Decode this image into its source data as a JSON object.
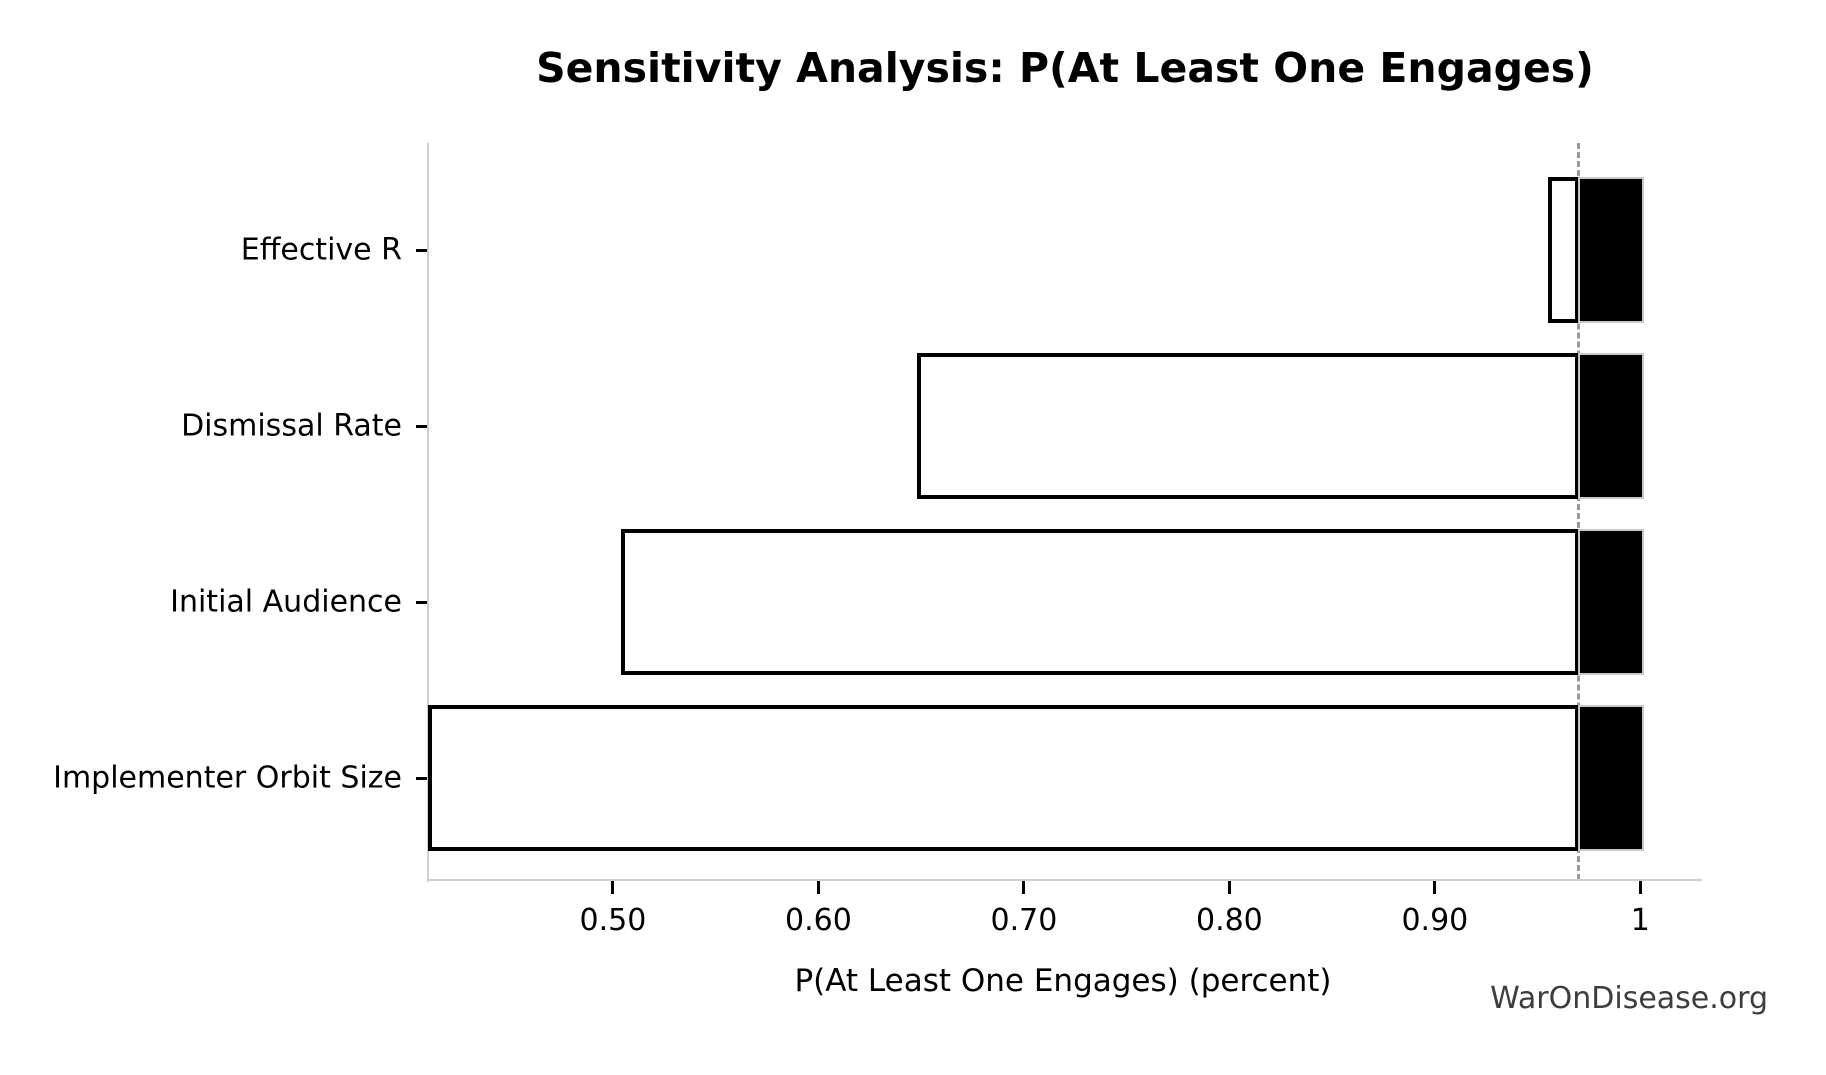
{
  "chart_data": {
    "type": "bar",
    "variant": "tornado-sensitivity",
    "orientation": "horizontal",
    "title": "Sensitivity Analysis: P(At Least One Engages)",
    "xlabel": "P(At Least One Engages) (percent)",
    "watermark": "WarOnDisease.org",
    "base_value": 0.97,
    "categories": [
      "Effective R",
      "Dismissal Rate",
      "Initial Audience",
      "Implementer Orbit Size"
    ],
    "series": [
      {
        "name": "low-end",
        "values": [
          0.955,
          0.648,
          0.504,
          0.41
        ]
      },
      {
        "name": "high-end",
        "values": [
          1.0,
          1.0,
          1.0,
          1.0
        ]
      }
    ],
    "xlim": [
      0.41,
      1.03
    ],
    "xticks": [
      0.5,
      0.6,
      0.7,
      0.8,
      0.9,
      1.0
    ],
    "xtick_labels": [
      "0.50",
      "0.60",
      "0.70",
      "0.80",
      "0.90",
      "1"
    ],
    "grid": false,
    "legend": false,
    "baseline_marker": "vertical dashed gray line at base value 0.97",
    "colors": {
      "background": "#ffffff",
      "bar_low_fill": "#ffffff",
      "bar_low_edge": "#000000",
      "bar_high_fill": "#000000",
      "bar_high_edge": "#c8c8c8",
      "spine": "#cfcfcf",
      "baseline": "#999999",
      "text": "#000000",
      "watermark": "#3d3d3d"
    }
  }
}
